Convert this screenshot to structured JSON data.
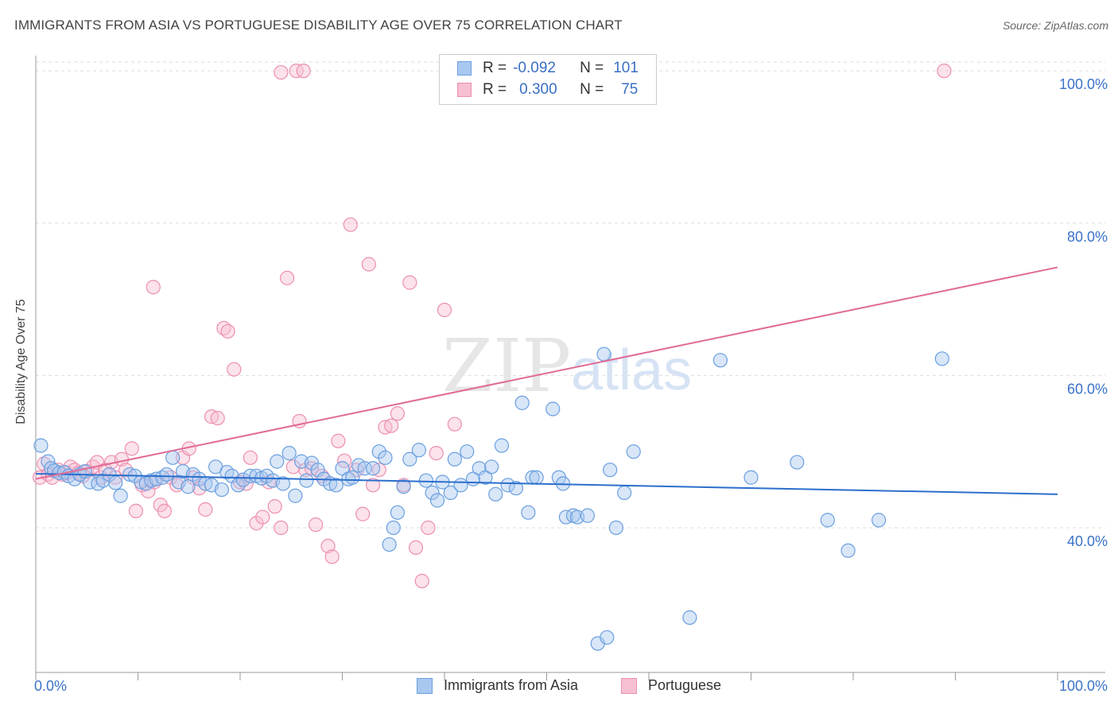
{
  "title": "IMMIGRANTS FROM ASIA VS PORTUGUESE DISABILITY AGE OVER 75 CORRELATION CHART",
  "source": "Source: ZipAtlas.com",
  "watermark": {
    "zip": "ZIP",
    "atlas": "atlas"
  },
  "legend_top": {
    "rows": [
      {
        "r_label": "R =",
        "r_value": "-0.092",
        "n_label": "N =",
        "n_value": "101"
      },
      {
        "r_label": "R =",
        "r_value": "0.300",
        "n_label": "N =",
        "n_value": "75"
      }
    ]
  },
  "legend_bottom": [
    "Immigrants from Asia",
    "Portuguese"
  ],
  "colors": {
    "blue_fill": "#a9c8f0",
    "blue_stroke": "#6a9fdf",
    "blue_line": "#2b6fcc",
    "pink_fill": "#f7bfd2",
    "pink_stroke": "#ec8fb0",
    "pink_line": "#e06a95",
    "axis_text": "#3a72c8",
    "grid": "#dddddd"
  },
  "chart_data": {
    "type": "scatter",
    "title": "IMMIGRANTS FROM ASIA VS PORTUGUESE DISABILITY AGE OVER 75 CORRELATION CHART",
    "xlabel": "",
    "ylabel": "Disability Age Over 75",
    "xlim": [
      0,
      100
    ],
    "ylim": [
      21,
      102
    ],
    "x_tick_labels": [
      "0.0%",
      "100.0%"
    ],
    "y_ticks": [
      40,
      60,
      80,
      100
    ],
    "y_tick_labels": [
      "40.0%",
      "60.0%",
      "80.0%",
      "100.0%"
    ],
    "grid": true,
    "legend_placement": "top-center",
    "series": [
      {
        "name": "Immigrants from Asia",
        "R": -0.092,
        "N": 101,
        "trend": {
          "x": [
            0,
            100
          ],
          "y": [
            47.1,
            44.4
          ]
        },
        "points": [
          [
            0.5,
            50.8
          ],
          [
            1.2,
            48.7
          ],
          [
            1.5,
            47.8
          ],
          [
            1.8,
            47.5
          ],
          [
            2.3,
            47.2
          ],
          [
            2.8,
            47.3
          ],
          [
            3.2,
            46.8
          ],
          [
            3.8,
            46.4
          ],
          [
            4.3,
            47.0
          ],
          [
            4.8,
            47.4
          ],
          [
            5.3,
            46.0
          ],
          [
            6.1,
            45.8
          ],
          [
            6.6,
            46.2
          ],
          [
            7.2,
            47.0
          ],
          [
            7.8,
            45.9
          ],
          [
            8.3,
            44.2
          ],
          [
            9.2,
            47.0
          ],
          [
            9.7,
            46.8
          ],
          [
            10.3,
            46.0
          ],
          [
            10.8,
            45.8
          ],
          [
            11.3,
            46.2
          ],
          [
            11.8,
            46.4
          ],
          [
            12.4,
            46.6
          ],
          [
            12.8,
            47.0
          ],
          [
            13.4,
            49.2
          ],
          [
            14.0,
            46.0
          ],
          [
            14.4,
            47.4
          ],
          [
            14.9,
            45.4
          ],
          [
            15.4,
            47.0
          ],
          [
            16.0,
            46.4
          ],
          [
            16.6,
            45.8
          ],
          [
            17.2,
            45.6
          ],
          [
            17.6,
            48.0
          ],
          [
            18.2,
            45.0
          ],
          [
            18.7,
            47.3
          ],
          [
            19.2,
            46.8
          ],
          [
            19.8,
            45.6
          ],
          [
            20.3,
            46.3
          ],
          [
            21.0,
            46.8
          ],
          [
            21.6,
            46.8
          ],
          [
            22.1,
            46.5
          ],
          [
            22.6,
            46.8
          ],
          [
            23.2,
            46.2
          ],
          [
            23.6,
            48.7
          ],
          [
            24.2,
            45.8
          ],
          [
            24.8,
            49.8
          ],
          [
            25.4,
            44.2
          ],
          [
            26.0,
            48.7
          ],
          [
            26.5,
            46.2
          ],
          [
            27.0,
            48.5
          ],
          [
            27.6,
            47.6
          ],
          [
            28.2,
            46.4
          ],
          [
            28.8,
            45.8
          ],
          [
            29.4,
            45.6
          ],
          [
            30.0,
            47.8
          ],
          [
            30.6,
            46.4
          ],
          [
            31.0,
            46.6
          ],
          [
            31.6,
            48.2
          ],
          [
            32.2,
            47.8
          ],
          [
            33.0,
            47.8
          ],
          [
            33.6,
            50.0
          ],
          [
            34.2,
            49.2
          ],
          [
            34.6,
            37.8
          ],
          [
            35.0,
            40.0
          ],
          [
            35.4,
            42.0
          ],
          [
            36.0,
            45.4
          ],
          [
            36.6,
            49.0
          ],
          [
            37.5,
            50.2
          ],
          [
            38.2,
            46.2
          ],
          [
            38.8,
            44.6
          ],
          [
            39.3,
            43.6
          ],
          [
            39.8,
            46.0
          ],
          [
            40.6,
            44.6
          ],
          [
            41.0,
            49.0
          ],
          [
            41.6,
            45.6
          ],
          [
            42.2,
            50.0
          ],
          [
            42.8,
            46.4
          ],
          [
            43.4,
            47.8
          ],
          [
            44.0,
            46.6
          ],
          [
            44.6,
            48.0
          ],
          [
            45.0,
            44.4
          ],
          [
            45.6,
            50.8
          ],
          [
            46.2,
            45.6
          ],
          [
            47.0,
            45.2
          ],
          [
            47.6,
            56.4
          ],
          [
            48.2,
            42.0
          ],
          [
            48.6,
            46.6
          ],
          [
            49.0,
            46.6
          ],
          [
            50.6,
            55.6
          ],
          [
            51.2,
            46.6
          ],
          [
            51.6,
            45.8
          ],
          [
            51.9,
            41.4
          ],
          [
            52.6,
            41.6
          ],
          [
            53.0,
            41.4
          ],
          [
            54.0,
            41.6
          ],
          [
            55.0,
            24.8
          ],
          [
            55.6,
            62.8
          ],
          [
            55.9,
            25.6
          ],
          [
            56.2,
            47.6
          ],
          [
            56.8,
            40.0
          ],
          [
            57.6,
            44.6
          ],
          [
            58.5,
            50.0
          ],
          [
            64.0,
            28.2
          ],
          [
            67.0,
            62.0
          ],
          [
            70.0,
            46.6
          ],
          [
            74.5,
            48.6
          ],
          [
            77.5,
            41.0
          ],
          [
            79.5,
            37.0
          ],
          [
            82.5,
            41.0
          ],
          [
            88.7,
            62.2
          ]
        ]
      },
      {
        "name": "Portuguese",
        "R": 0.3,
        "N": 75,
        "trend": {
          "x": [
            0,
            100
          ],
          "y": [
            46.4,
            74.2
          ]
        },
        "points": [
          [
            0.4,
            46.6
          ],
          [
            0.8,
            48.4
          ],
          [
            1.2,
            47.0
          ],
          [
            1.6,
            46.6
          ],
          [
            2.2,
            47.6
          ],
          [
            2.6,
            47.0
          ],
          [
            3.0,
            47.2
          ],
          [
            3.4,
            48.0
          ],
          [
            3.8,
            47.6
          ],
          [
            4.2,
            47.2
          ],
          [
            4.6,
            46.8
          ],
          [
            5.0,
            47.4
          ],
          [
            5.6,
            48.0
          ],
          [
            6.0,
            48.6
          ],
          [
            6.4,
            46.6
          ],
          [
            6.8,
            47.6
          ],
          [
            7.4,
            48.6
          ],
          [
            7.8,
            46.6
          ],
          [
            8.4,
            49.0
          ],
          [
            8.8,
            47.6
          ],
          [
            9.4,
            50.4
          ],
          [
            9.8,
            42.2
          ],
          [
            10.4,
            45.6
          ],
          [
            11.0,
            44.8
          ],
          [
            11.6,
            46.0
          ],
          [
            12.2,
            43.0
          ],
          [
            12.6,
            42.2
          ],
          [
            13.2,
            46.6
          ],
          [
            13.8,
            45.6
          ],
          [
            14.4,
            49.2
          ],
          [
            15.0,
            50.4
          ],
          [
            15.4,
            46.6
          ],
          [
            16.0,
            45.2
          ],
          [
            16.6,
            42.4
          ],
          [
            17.2,
            54.6
          ],
          [
            17.8,
            54.4
          ],
          [
            18.4,
            66.2
          ],
          [
            18.8,
            65.8
          ],
          [
            19.4,
            60.8
          ],
          [
            20.0,
            46.0
          ],
          [
            20.6,
            45.8
          ],
          [
            21.0,
            49.2
          ],
          [
            21.6,
            40.6
          ],
          [
            22.2,
            41.4
          ],
          [
            22.8,
            46.0
          ],
          [
            23.4,
            42.8
          ],
          [
            24.0,
            40.0
          ],
          [
            24.6,
            72.8
          ],
          [
            25.2,
            48.0
          ],
          [
            25.8,
            54.0
          ],
          [
            26.4,
            47.6
          ],
          [
            27.0,
            47.8
          ],
          [
            27.4,
            40.4
          ],
          [
            28.0,
            46.8
          ],
          [
            28.6,
            37.6
          ],
          [
            29.0,
            36.2
          ],
          [
            29.6,
            51.4
          ],
          [
            30.2,
            48.8
          ],
          [
            30.8,
            79.8
          ],
          [
            31.4,
            47.6
          ],
          [
            32.0,
            41.8
          ],
          [
            32.6,
            74.6
          ],
          [
            33.0,
            45.6
          ],
          [
            33.6,
            47.6
          ],
          [
            34.2,
            53.2
          ],
          [
            34.8,
            53.4
          ],
          [
            35.4,
            55.0
          ],
          [
            36.0,
            45.6
          ],
          [
            36.6,
            72.2
          ],
          [
            37.2,
            37.4
          ],
          [
            37.8,
            33.0
          ],
          [
            38.4,
            40.0
          ],
          [
            39.2,
            49.8
          ],
          [
            40.0,
            68.6
          ],
          [
            41.0,
            53.6
          ],
          [
            11.5,
            71.6
          ],
          [
            24.0,
            99.8
          ],
          [
            25.5,
            100.0
          ],
          [
            26.2,
            100.0
          ],
          [
            88.9,
            100.0
          ]
        ]
      }
    ]
  }
}
